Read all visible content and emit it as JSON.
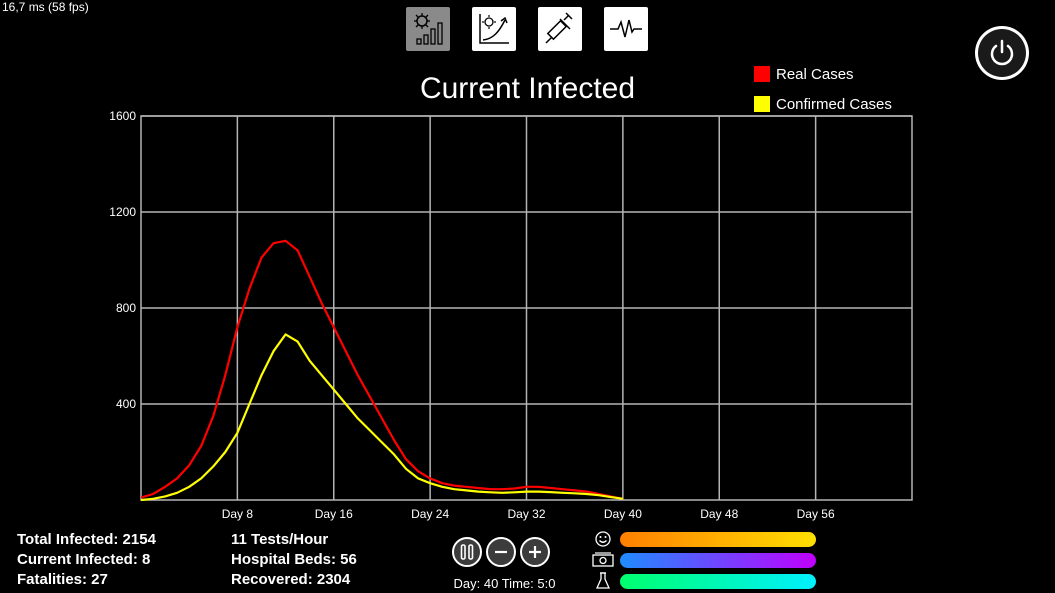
{
  "perf": {
    "text": "16,7 ms (58 fps)"
  },
  "toolbar": {
    "items": [
      {
        "icon": "virus-bar-chart-icon",
        "active": true
      },
      {
        "icon": "virus-growth-chart-icon",
        "active": false
      },
      {
        "icon": "syringe-icon",
        "active": false
      },
      {
        "icon": "heartbeat-icon",
        "active": false
      }
    ]
  },
  "power": {
    "icon": "power-icon"
  },
  "stats": {
    "total_infected": "Total Infected: 2154",
    "current_infected": "Current Infected: 8",
    "fatalities": "Fatalities: 27",
    "tests": "11 Tests/Hour",
    "hospital_beds": "Hospital Beds: 56",
    "recovered": "Recovered: 2304"
  },
  "controls": {
    "pause_icon": "pause-icon",
    "minus_icon": "minus-icon",
    "plus_icon": "plus-icon",
    "day_time": "Day: 40 Time: 5:0"
  },
  "bars": [
    {
      "icon": "smiley-icon",
      "color_from": "#ff7f00",
      "color_to": "#ffe000"
    },
    {
      "icon": "money-icon",
      "color_from": "#1e8cff",
      "color_to": "#c000ff"
    },
    {
      "icon": "flask-icon",
      "color_from": "#00ff6e",
      "color_to": "#00f0ff"
    }
  ],
  "chart_data": {
    "type": "line",
    "title": "Current Infected",
    "xlabel": "",
    "ylabel": "",
    "xlim": [
      0,
      64
    ],
    "ylim": [
      0,
      1600
    ],
    "yticks": [
      400,
      800,
      1200,
      1600
    ],
    "xticks": [
      8,
      16,
      24,
      32,
      40,
      48,
      56
    ],
    "xtick_labels": [
      "Day 8",
      "Day 16",
      "Day 24",
      "Day 32",
      "Day 40",
      "Day 48",
      "Day 56"
    ],
    "grid": true,
    "legend_position": "top-right",
    "series": [
      {
        "name": "Real Cases",
        "color": "#ff0000",
        "x": [
          0,
          1,
          2,
          3,
          4,
          5,
          6,
          7,
          8,
          9,
          10,
          11,
          12,
          13,
          14,
          15,
          16,
          17,
          18,
          19,
          20,
          21,
          22,
          23,
          24,
          25,
          26,
          27,
          28,
          29,
          30,
          31,
          32,
          33,
          34,
          35,
          36,
          37,
          38,
          39,
          40
        ],
        "y": [
          10,
          25,
          55,
          90,
          145,
          225,
          350,
          520,
          720,
          880,
          1010,
          1070,
          1080,
          1040,
          930,
          820,
          720,
          620,
          520,
          430,
          340,
          250,
          170,
          120,
          90,
          70,
          60,
          55,
          50,
          45,
          45,
          48,
          55,
          55,
          50,
          45,
          40,
          35,
          25,
          15,
          5
        ]
      },
      {
        "name": "Confirmed Cases",
        "color": "#ffff00",
        "x": [
          0,
          1,
          2,
          3,
          4,
          5,
          6,
          7,
          8,
          9,
          10,
          11,
          12,
          13,
          14,
          15,
          16,
          17,
          18,
          19,
          20,
          21,
          22,
          23,
          24,
          25,
          26,
          27,
          28,
          29,
          30,
          31,
          32,
          33,
          34,
          35,
          36,
          37,
          38,
          39,
          40
        ],
        "y": [
          0,
          5,
          15,
          30,
          55,
          90,
          140,
          200,
          280,
          400,
          520,
          620,
          690,
          660,
          580,
          520,
          460,
          400,
          340,
          290,
          240,
          190,
          130,
          90,
          70,
          55,
          45,
          40,
          35,
          32,
          30,
          32,
          35,
          35,
          33,
          30,
          28,
          25,
          20,
          12,
          5
        ]
      }
    ]
  }
}
